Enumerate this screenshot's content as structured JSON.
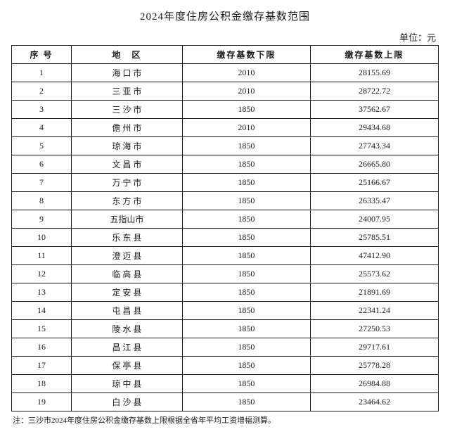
{
  "title": "2024年度住房公积金缴存基数范围",
  "unit_label": "单位：元",
  "table": {
    "columns": [
      "序 号",
      "地　区",
      "缴存基数下限",
      "缴存基数上限"
    ],
    "rows": [
      [
        "1",
        "海 口 市",
        "2010",
        "28155.69"
      ],
      [
        "2",
        "三 亚 市",
        "2010",
        "28722.72"
      ],
      [
        "3",
        "三 沙 市",
        "1850",
        "37562.67"
      ],
      [
        "4",
        "儋 州 市",
        "2010",
        "29434.68"
      ],
      [
        "5",
        "琼 海 市",
        "1850",
        "27743.34"
      ],
      [
        "6",
        "文 昌 市",
        "1850",
        "26665.80"
      ],
      [
        "7",
        "万 宁 市",
        "1850",
        "25166.67"
      ],
      [
        "8",
        "东 方 市",
        "1850",
        "26335.47"
      ],
      [
        "9",
        "五指山市",
        "1850",
        "24007.95"
      ],
      [
        "10",
        "乐 东 县",
        "1850",
        "25785.51"
      ],
      [
        "11",
        "澄 迈 县",
        "1850",
        "47412.90"
      ],
      [
        "12",
        "临 高 县",
        "1850",
        "25573.62"
      ],
      [
        "13",
        "定 安 县",
        "1850",
        "21891.69"
      ],
      [
        "14",
        "屯 昌 县",
        "1850",
        "22341.24"
      ],
      [
        "15",
        "陵 水 县",
        "1850",
        "27250.53"
      ],
      [
        "16",
        "昌 江 县",
        "1850",
        "29717.61"
      ],
      [
        "17",
        "保 亭 县",
        "1850",
        "25778.28"
      ],
      [
        "18",
        "琼 中 县",
        "1850",
        "26984.88"
      ],
      [
        "19",
        "白 沙 县",
        "1850",
        "23464.62"
      ]
    ]
  },
  "note": "注：三沙市2024年度住房公积金缴存基数上限根据全省年平均工资增幅测算。"
}
